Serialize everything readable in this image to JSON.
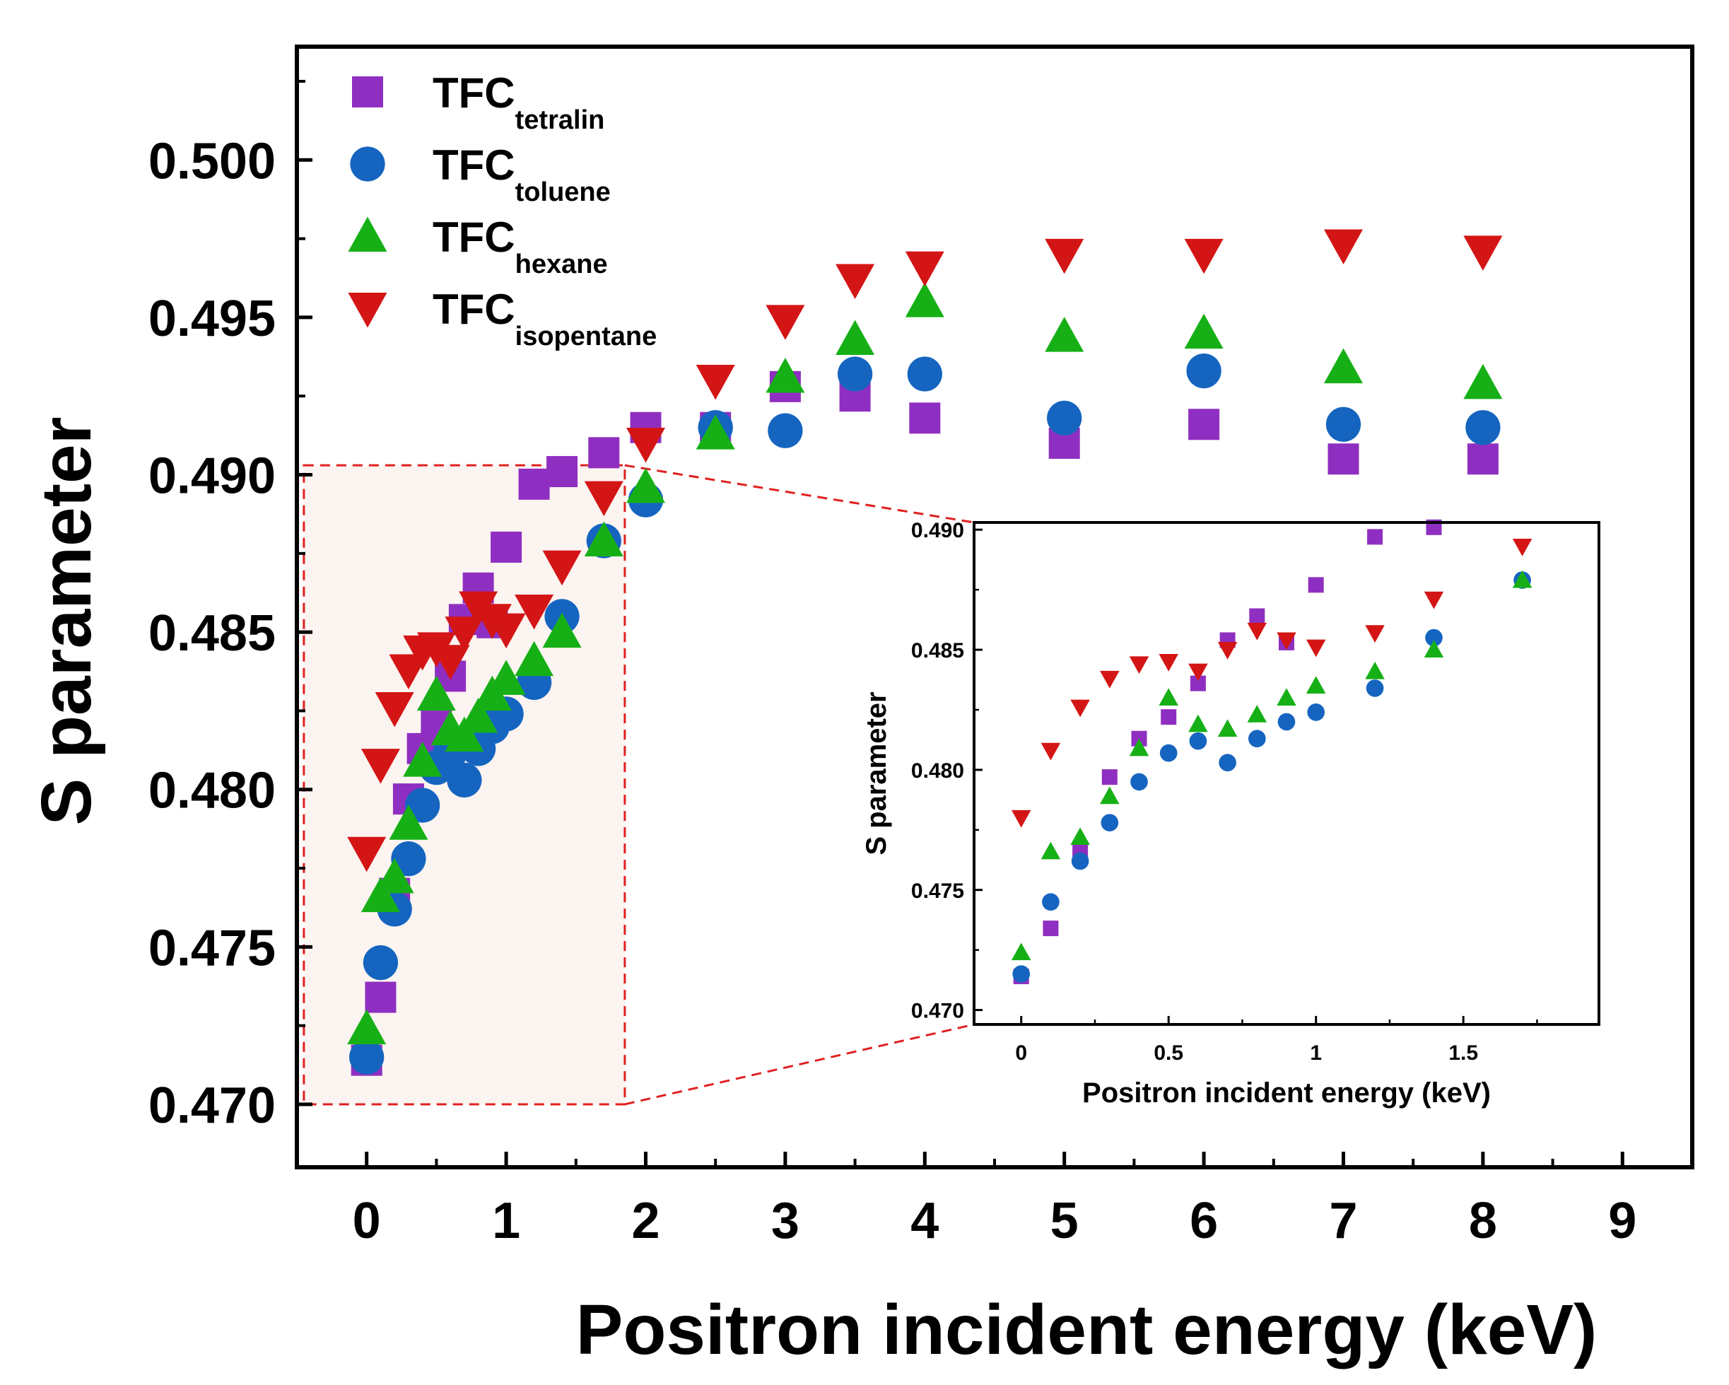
{
  "chart_data": {
    "type": "scatter",
    "main": {
      "xlabel": "Positron incident energy (keV)",
      "ylabel": "S parameter",
      "xlim": [
        -0.5,
        9.5
      ],
      "ylim": [
        0.468,
        0.5036
      ],
      "xticks": [
        "0",
        "1",
        "2",
        "3",
        "4",
        "5",
        "6",
        "7",
        "8",
        "9"
      ],
      "xtick_values": [
        0,
        1,
        2,
        3,
        4,
        5,
        6,
        7,
        8,
        9
      ],
      "yticks": [
        "0.470",
        "0.475",
        "0.480",
        "0.485",
        "0.490",
        "0.495",
        "0.500"
      ],
      "ytick_values": [
        0.47,
        0.475,
        0.48,
        0.485,
        0.49,
        0.495,
        0.5
      ],
      "legend_position": "top-left"
    },
    "inset": {
      "xlabel": "Positron incident energy (keV)",
      "ylabel": "S parameter",
      "xlim": [
        -0.16,
        1.96
      ],
      "ylim": [
        0.4694,
        0.4903
      ],
      "xticks": [
        "0",
        "0.5",
        "1",
        "1.5"
      ],
      "xtick_values": [
        0,
        0.5,
        1,
        1.5
      ],
      "yticks": [
        "0.470",
        "0.475",
        "0.480",
        "0.485",
        "0.490"
      ],
      "ytick_values": [
        0.47,
        0.475,
        0.48,
        0.485,
        0.49
      ],
      "zoom_region": {
        "x": [
          -0.45,
          1.85
        ],
        "y": [
          0.47,
          0.4903
        ]
      }
    },
    "series": [
      {
        "name": "TFC",
        "subscript": "tetralin",
        "marker": "square",
        "color": "#8F2FC1",
        "x": [
          0,
          0.1,
          0.2,
          0.3,
          0.4,
          0.5,
          0.6,
          0.7,
          0.8,
          0.9,
          1.0,
          1.2,
          1.4,
          1.7,
          2.0,
          2.5,
          3.0,
          3.5,
          4.0,
          5.0,
          6.0,
          7.0,
          8.0
        ],
        "y": [
          0.4714,
          0.4734,
          0.4767,
          0.4797,
          0.4813,
          0.4822,
          0.4836,
          0.4854,
          0.4864,
          0.4853,
          0.4877,
          0.4897,
          0.4901,
          0.4907,
          0.4915,
          0.4915,
          0.4928,
          0.4925,
          0.4918,
          0.491,
          0.4916,
          0.4905,
          0.4905
        ]
      },
      {
        "name": "TFC",
        "subscript": "toluene",
        "marker": "circle",
        "color": "#1565C0",
        "x": [
          0,
          0.1,
          0.2,
          0.3,
          0.4,
          0.5,
          0.6,
          0.7,
          0.8,
          0.9,
          1.0,
          1.2,
          1.4,
          1.7,
          2.0,
          2.5,
          3.0,
          3.5,
          4.0,
          5.0,
          6.0,
          7.0,
          8.0
        ],
        "y": [
          0.4715,
          0.4745,
          0.4762,
          0.4778,
          0.4795,
          0.4807,
          0.4812,
          0.4803,
          0.4813,
          0.482,
          0.4824,
          0.4834,
          0.4855,
          0.4879,
          0.4892,
          0.4915,
          0.4914,
          0.4932,
          0.4932,
          0.4918,
          0.4933,
          0.4916,
          0.4915
        ]
      },
      {
        "name": "TFC",
        "subscript": "hexane",
        "marker": "triangle-up",
        "color": "#16B016",
        "x": [
          0,
          0.1,
          0.2,
          0.3,
          0.4,
          0.5,
          0.6,
          0.7,
          0.8,
          0.9,
          1.0,
          1.2,
          1.4,
          1.7,
          2.0,
          2.5,
          3.0,
          3.5,
          4.0,
          5.0,
          6.0,
          7.0,
          8.0
        ],
        "y": [
          0.4724,
          0.4766,
          0.4772,
          0.4789,
          0.4809,
          0.483,
          0.4819,
          0.4817,
          0.4823,
          0.483,
          0.4835,
          0.4841,
          0.485,
          0.4879,
          0.4896,
          0.4913,
          0.4931,
          0.4943,
          0.4955,
          0.4944,
          0.4945,
          0.4934,
          0.4929
        ]
      },
      {
        "name": "TFC",
        "subscript": "isopentane",
        "marker": "triangle-down",
        "color": "#D41515",
        "x": [
          0,
          0.1,
          0.2,
          0.3,
          0.4,
          0.5,
          0.6,
          0.7,
          0.8,
          0.9,
          1.0,
          1.2,
          1.4,
          1.7,
          2.0,
          2.5,
          3.0,
          3.5,
          4.0,
          5.0,
          6.0,
          7.0,
          8.0
        ],
        "y": [
          0.478,
          0.4808,
          0.4826,
          0.4838,
          0.4844,
          0.4845,
          0.4841,
          0.485,
          0.4858,
          0.4854,
          0.4851,
          0.4857,
          0.4871,
          0.4893,
          0.491,
          0.493,
          0.4949,
          0.4962,
          0.4966,
          0.497,
          0.497,
          0.4973,
          0.4971
        ]
      }
    ]
  }
}
